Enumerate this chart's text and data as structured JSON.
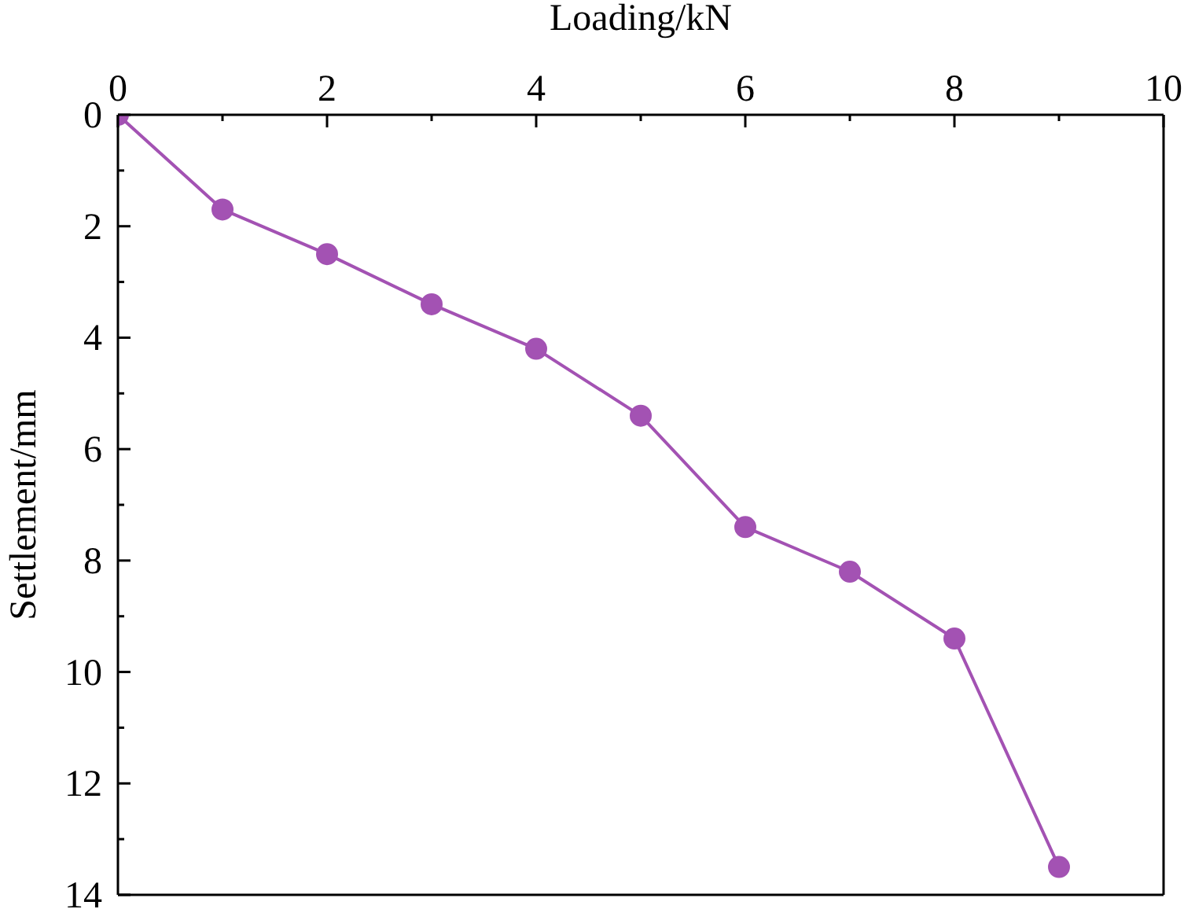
{
  "chart_data": {
    "type": "line",
    "xlabel": "Loading/kN",
    "ylabel": "Settlement/mm",
    "x": [
      0,
      1,
      2,
      3,
      4,
      5,
      6,
      7,
      8,
      9
    ],
    "series": [
      {
        "color": "#a352b3",
        "values": [
          0,
          1.7,
          2.5,
          3.4,
          4.2,
          5.4,
          7.4,
          8.2,
          9.4,
          13.5
        ]
      }
    ],
    "xlim": [
      0,
      10
    ],
    "xticks": [
      0,
      {
        "value": 1,
        "label": null
      },
      2,
      {
        "value": 3,
        "label": null
      },
      4,
      {
        "value": 5,
        "label": null
      },
      6,
      {
        "value": 7,
        "label": null
      },
      8,
      {
        "value": 9,
        "label": null
      },
      10
    ],
    "ylim": [
      14,
      0
    ],
    "yticks": [
      0,
      {
        "value": 1,
        "label": null
      },
      2,
      {
        "value": 3,
        "label": null
      },
      4,
      {
        "value": 5,
        "label": null
      },
      6,
      {
        "value": 7,
        "label": null
      },
      8,
      {
        "value": 9,
        "label": null
      },
      10,
      {
        "value": 11,
        "label": null
      },
      12,
      {
        "value": 13,
        "label": null
      },
      14
    ],
    "marker": "circle",
    "line_style": "solid"
  }
}
